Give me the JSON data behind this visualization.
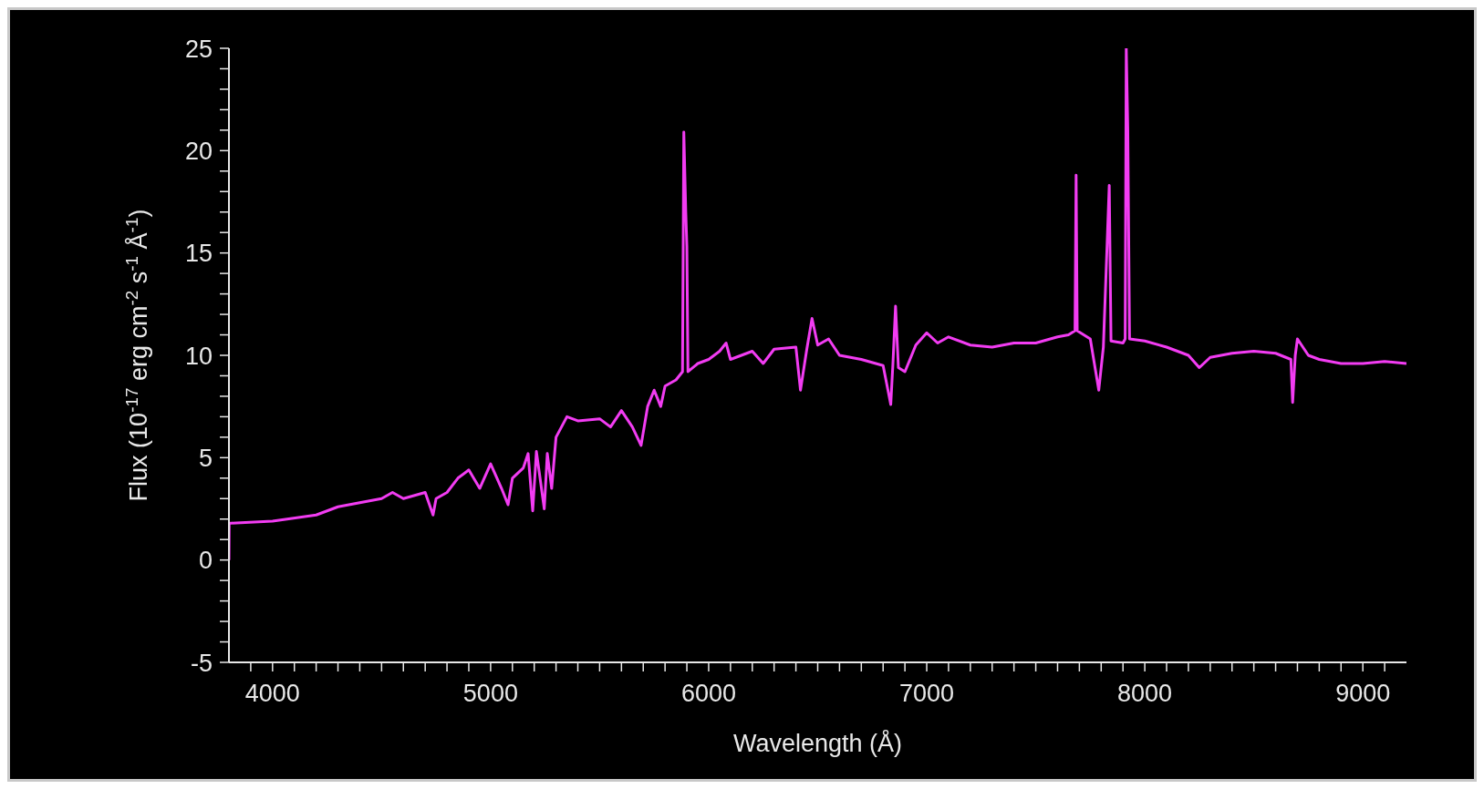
{
  "chart_data": {
    "type": "line",
    "xlabel": "Wavelength (Å)",
    "ylabel": "Flux (10$^{-17}$ erg cm$^{-2}$ s$^{-1}$ Å$^{-1}$)",
    "x": [
      3800,
      3801,
      3810,
      4000,
      4200,
      4300,
      4400,
      4500,
      4550,
      4600,
      4700,
      4736,
      4750,
      4800,
      4850,
      4900,
      4950,
      5000,
      5050,
      5080,
      5100,
      5150,
      5172,
      5193,
      5210,
      5246,
      5260,
      5280,
      5300,
      5350,
      5400,
      5500,
      5550,
      5600,
      5650,
      5690,
      5720,
      5750,
      5780,
      5800,
      5850,
      5880,
      5886,
      5895,
      5900,
      5905,
      5950,
      6000,
      6050,
      6080,
      6100,
      6200,
      6250,
      6300,
      6400,
      6421,
      6450,
      6474,
      6500,
      6550,
      6600,
      6700,
      6800,
      6835,
      6845,
      6857,
      6870,
      6900,
      6950,
      7000,
      7050,
      7100,
      7200,
      7300,
      7400,
      7500,
      7600,
      7650,
      7680,
      7685,
      7690,
      7750,
      7789,
      7810,
      7837,
      7845,
      7900,
      7910,
      7915,
      7922,
      7930,
      8000,
      8100,
      8200,
      8250,
      8300,
      8400,
      8500,
      8600,
      8670,
      8678,
      8690,
      8700,
      8750,
      8800,
      8900,
      9000,
      9100,
      9200
    ],
    "series": [
      {
        "color": "#f23cf2",
        "values": [
          0,
          1.8,
          1.8,
          1.9,
          2.2,
          2.6,
          2.8,
          3.0,
          3.3,
          3.0,
          3.3,
          2.2,
          3.0,
          3.3,
          4.0,
          4.4,
          3.5,
          4.7,
          3.5,
          2.7,
          4.0,
          4.5,
          5.2,
          2.4,
          5.3,
          2.5,
          5.2,
          3.5,
          6.0,
          7.0,
          6.8,
          6.9,
          6.5,
          7.3,
          6.5,
          5.6,
          7.5,
          8.3,
          7.5,
          8.5,
          8.8,
          9.2,
          20.9,
          17,
          15.3,
          9.2,
          9.6,
          9.8,
          10.2,
          10.6,
          9.8,
          10.2,
          9.6,
          10.3,
          10.4,
          8.3,
          10.3,
          11.8,
          10.5,
          10.8,
          10.0,
          9.8,
          9.5,
          7.6,
          9.6,
          12.4,
          9.4,
          9.2,
          10.5,
          11.1,
          10.6,
          10.9,
          10.5,
          10.4,
          10.6,
          10.6,
          10.9,
          11.0,
          11.2,
          18.8,
          11.2,
          10.8,
          8.3,
          10.4,
          18.3,
          10.7,
          10.6,
          10.8,
          25,
          21.0,
          10.8,
          10.7,
          10.4,
          10.0,
          9.4,
          9.9,
          10.1,
          10.2,
          10.1,
          9.8,
          7.7,
          10.0,
          10.8,
          10.0,
          9.8,
          9.6,
          9.6,
          9.7,
          9.6
        ]
      }
    ],
    "xlim": [
      3800,
      9200
    ],
    "xticks": [
      {
        "value": 3900,
        "label": null
      },
      4000,
      {
        "value": 4100,
        "label": null
      },
      {
        "value": 4200,
        "label": null
      },
      {
        "value": 4300,
        "label": null
      },
      {
        "value": 4400,
        "label": null
      },
      {
        "value": 4500,
        "label": null
      },
      {
        "value": 4600,
        "label": null
      },
      {
        "value": 4700,
        "label": null
      },
      {
        "value": 4800,
        "label": null
      },
      {
        "value": 4900,
        "label": null
      },
      5000,
      {
        "value": 5100,
        "label": null
      },
      {
        "value": 5200,
        "label": null
      },
      {
        "value": 5300,
        "label": null
      },
      {
        "value": 5400,
        "label": null
      },
      {
        "value": 5500,
        "label": null
      },
      {
        "value": 5600,
        "label": null
      },
      {
        "value": 5700,
        "label": null
      },
      {
        "value": 5800,
        "label": null
      },
      {
        "value": 5900,
        "label": null
      },
      6000,
      {
        "value": 6100,
        "label": null
      },
      {
        "value": 6200,
        "label": null
      },
      {
        "value": 6300,
        "label": null
      },
      {
        "value": 6400,
        "label": null
      },
      {
        "value": 6500,
        "label": null
      },
      {
        "value": 6600,
        "label": null
      },
      {
        "value": 6700,
        "label": null
      },
      {
        "value": 6800,
        "label": null
      },
      {
        "value": 6900,
        "label": null
      },
      7000,
      {
        "value": 7100,
        "label": null
      },
      {
        "value": 7200,
        "label": null
      },
      {
        "value": 7300,
        "label": null
      },
      {
        "value": 7400,
        "label": null
      },
      {
        "value": 7500,
        "label": null
      },
      {
        "value": 7600,
        "label": null
      },
      {
        "value": 7700,
        "label": null
      },
      {
        "value": 7800,
        "label": null
      },
      {
        "value": 7900,
        "label": null
      },
      8000,
      {
        "value": 8100,
        "label": null
      },
      {
        "value": 8200,
        "label": null
      },
      {
        "value": 8300,
        "label": null
      },
      {
        "value": 8400,
        "label": null
      },
      {
        "value": 8500,
        "label": null
      },
      {
        "value": 8600,
        "label": null
      },
      {
        "value": 8700,
        "label": null
      },
      {
        "value": 8800,
        "label": null
      },
      {
        "value": 8900,
        "label": null
      },
      9000,
      {
        "value": 9100,
        "label": null
      }
    ],
    "ylim": [
      -5,
      25
    ],
    "yticks": [
      -5,
      {
        "value": -4,
        "label": null
      },
      {
        "value": -3,
        "label": null
      },
      {
        "value": -2,
        "label": null
      },
      {
        "value": -1,
        "label": null
      },
      0,
      {
        "value": 1,
        "label": null
      },
      {
        "value": 2,
        "label": null
      },
      {
        "value": 3,
        "label": null
      },
      {
        "value": 4,
        "label": null
      },
      5,
      {
        "value": 6,
        "label": null
      },
      {
        "value": 7,
        "label": null
      },
      {
        "value": 8,
        "label": null
      },
      {
        "value": 9,
        "label": null
      },
      10,
      {
        "value": 11,
        "label": null
      },
      {
        "value": 12,
        "label": null
      },
      {
        "value": 13,
        "label": null
      },
      {
        "value": 14,
        "label": null
      },
      15,
      {
        "value": 16,
        "label": null
      },
      {
        "value": 17,
        "label": null
      },
      {
        "value": 18,
        "label": null
      },
      {
        "value": 19,
        "label": null
      },
      20,
      {
        "value": 21,
        "label": null
      },
      {
        "value": 22,
        "label": null
      },
      {
        "value": 23,
        "label": null
      },
      {
        "value": 24,
        "label": null
      },
      25
    ],
    "grid": false,
    "legend": false,
    "marker": "none",
    "line_style": "solid"
  }
}
